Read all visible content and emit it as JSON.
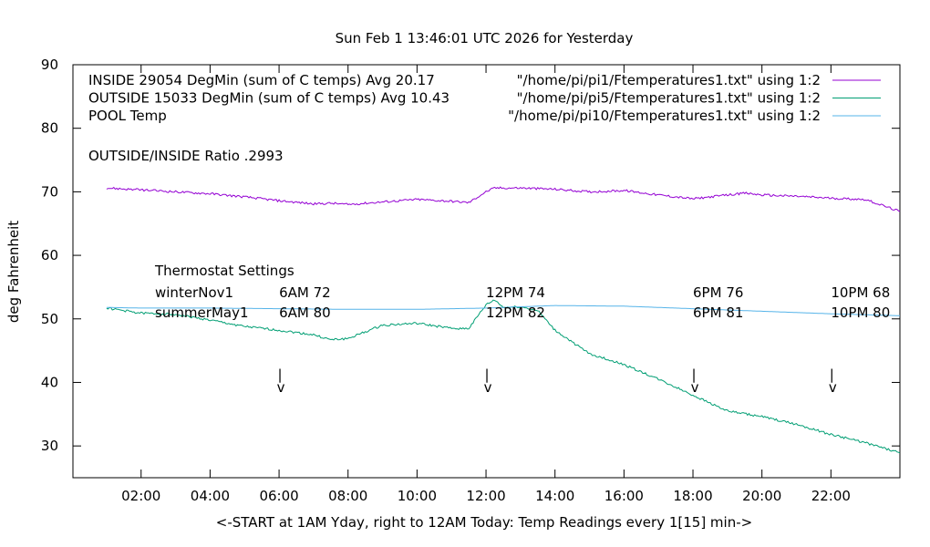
{
  "chart_data": {
    "type": "line",
    "title": "Sun Feb  1 13:46:01 UTC 2026 for Yesterday",
    "xlabel": "<-START at 1AM Yday, right to 12AM Today:  Temp Readings every 1[15] min->",
    "ylabel": "deg Fahrenheit",
    "xlim": [
      "01:00",
      "24:00"
    ],
    "ylim": [
      25,
      90
    ],
    "x_ticks": [
      "02:00",
      "04:00",
      "06:00",
      "08:00",
      "10:00",
      "12:00",
      "14:00",
      "16:00",
      "18:00",
      "20:00",
      "22:00"
    ],
    "y_ticks": [
      "30",
      "40",
      "50",
      "60",
      "70",
      "80",
      "90"
    ],
    "grid": false,
    "legend_position": "top-right",
    "colors": {
      "inside": "#9400d3",
      "outside": "#009e73",
      "pool": "#56b4e9"
    },
    "header_lines": [
      {
        "key": "inside",
        "label": "INSIDE 29054 DegMin (sum of C temps) Avg 20.17",
        "source": "\"/home/pi/pi1/Ftemperatures1.txt\" using 1:2"
      },
      {
        "key": "outside",
        "label": "OUTSIDE 15033 DegMin (sum of C temps) Avg 10.43",
        "source": "\"/home/pi/pi5/Ftemperatures1.txt\" using 1:2"
      },
      {
        "key": "pool",
        "label": "POOL Temp",
        "source": "\"/home/pi/pi10/Ftemperatures1.txt\" using 1:2"
      }
    ],
    "ratio_text": "OUTSIDE/INSIDE Ratio .2993",
    "thermostat": {
      "title": "Thermostat Settings",
      "row_labels": [
        "winterNov1",
        "summerMay1"
      ],
      "markers": [
        {
          "time": "06:00",
          "winter": "6AM 72",
          "summer": "6AM 80"
        },
        {
          "time": "12:00",
          "winter": "12PM 74",
          "summer": "12PM 82"
        },
        {
          "time": "18:00",
          "winter": "6PM 76",
          "summer": "6PM 81"
        },
        {
          "time": "22:00",
          "winter": "10PM 68",
          "summer": "10PM 80"
        }
      ],
      "arrow_text": [
        "|",
        "v"
      ]
    },
    "series": [
      {
        "key": "inside",
        "x": [
          "01:00",
          "02:00",
          "03:00",
          "04:00",
          "05:00",
          "06:00",
          "07:00",
          "07:30",
          "08:00",
          "09:00",
          "10:00",
          "11:00",
          "11:30",
          "12:00",
          "12:15",
          "13:00",
          "14:00",
          "15:00",
          "16:00",
          "17:00",
          "18:00",
          "19:00",
          "19:30",
          "20:00",
          "21:00",
          "22:00",
          "23:00",
          "24:00"
        ],
        "y": [
          70.6,
          70.3,
          70.0,
          69.7,
          69.2,
          68.6,
          68.1,
          68.2,
          68.0,
          68.4,
          68.8,
          68.5,
          68.3,
          70.0,
          70.6,
          70.6,
          70.4,
          70.0,
          70.2,
          69.5,
          68.9,
          69.5,
          69.8,
          69.5,
          69.3,
          69.0,
          68.8,
          66.9
        ]
      },
      {
        "key": "outside",
        "x": [
          "01:00",
          "02:00",
          "03:00",
          "04:00",
          "05:00",
          "06:00",
          "07:00",
          "07:30",
          "08:00",
          "09:00",
          "10:00",
          "11:00",
          "11:30",
          "12:00",
          "12:15",
          "12:30",
          "13:00",
          "13:30",
          "14:00",
          "15:00",
          "16:00",
          "17:00",
          "18:00",
          "19:00",
          "20:00",
          "21:00",
          "22:00",
          "23:00",
          "24:00"
        ],
        "y": [
          51.7,
          50.9,
          50.7,
          49.8,
          48.8,
          48.2,
          47.5,
          46.7,
          46.9,
          49.0,
          49.3,
          48.5,
          48.5,
          52.2,
          53.0,
          51.8,
          51.9,
          51.3,
          48.2,
          44.5,
          42.8,
          40.5,
          38.0,
          35.5,
          34.6,
          33.4,
          31.8,
          30.5,
          28.9
        ]
      },
      {
        "key": "pool",
        "x": [
          "01:00",
          "02:00",
          "04:00",
          "06:00",
          "08:00",
          "10:00",
          "12:00",
          "14:00",
          "16:00",
          "18:00",
          "20:00",
          "22:00",
          "24:00"
        ],
        "y": [
          51.8,
          51.7,
          51.7,
          51.6,
          51.5,
          51.5,
          51.7,
          52.1,
          52.0,
          51.6,
          51.2,
          50.8,
          50.5
        ]
      }
    ]
  }
}
